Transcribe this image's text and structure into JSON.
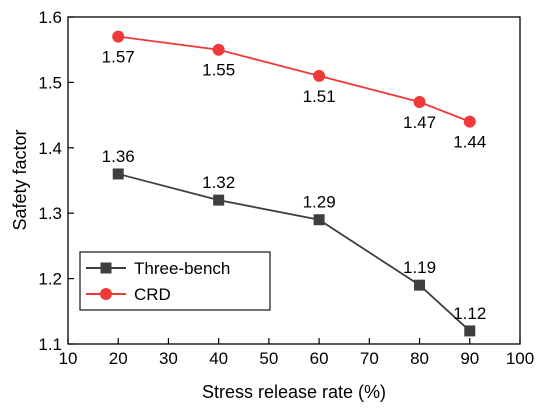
{
  "chart_data": {
    "type": "line",
    "xlabel": "Stress release rate (%)",
    "ylabel": "Safety factor",
    "xlim": [
      10,
      100
    ],
    "ylim": [
      1.1,
      1.6
    ],
    "xticks": [
      "10",
      "20",
      "30",
      "40",
      "50",
      "60",
      "70",
      "80",
      "90",
      "100"
    ],
    "yticks": [
      "1.1",
      "1.2",
      "1.3",
      "1.4",
      "1.5",
      "1.6"
    ],
    "grid": false,
    "legend_position": "bottom-left",
    "series": [
      {
        "name": "Three-bench",
        "marker": "square",
        "color": "#3f3f3f",
        "x": [
          20,
          40,
          60,
          80,
          90
        ],
        "y": [
          1.36,
          1.32,
          1.29,
          1.19,
          1.12
        ],
        "labels": [
          "1.36",
          "1.32",
          "1.29",
          "1.19",
          "1.12"
        ],
        "label_position": "above"
      },
      {
        "name": "CRD",
        "marker": "circle",
        "color": "#f03a3a",
        "x": [
          20,
          40,
          60,
          80,
          90
        ],
        "y": [
          1.57,
          1.55,
          1.51,
          1.47,
          1.44
        ],
        "labels": [
          "1.57",
          "1.55",
          "1.51",
          "1.47",
          "1.44"
        ],
        "label_position": "below"
      }
    ]
  }
}
